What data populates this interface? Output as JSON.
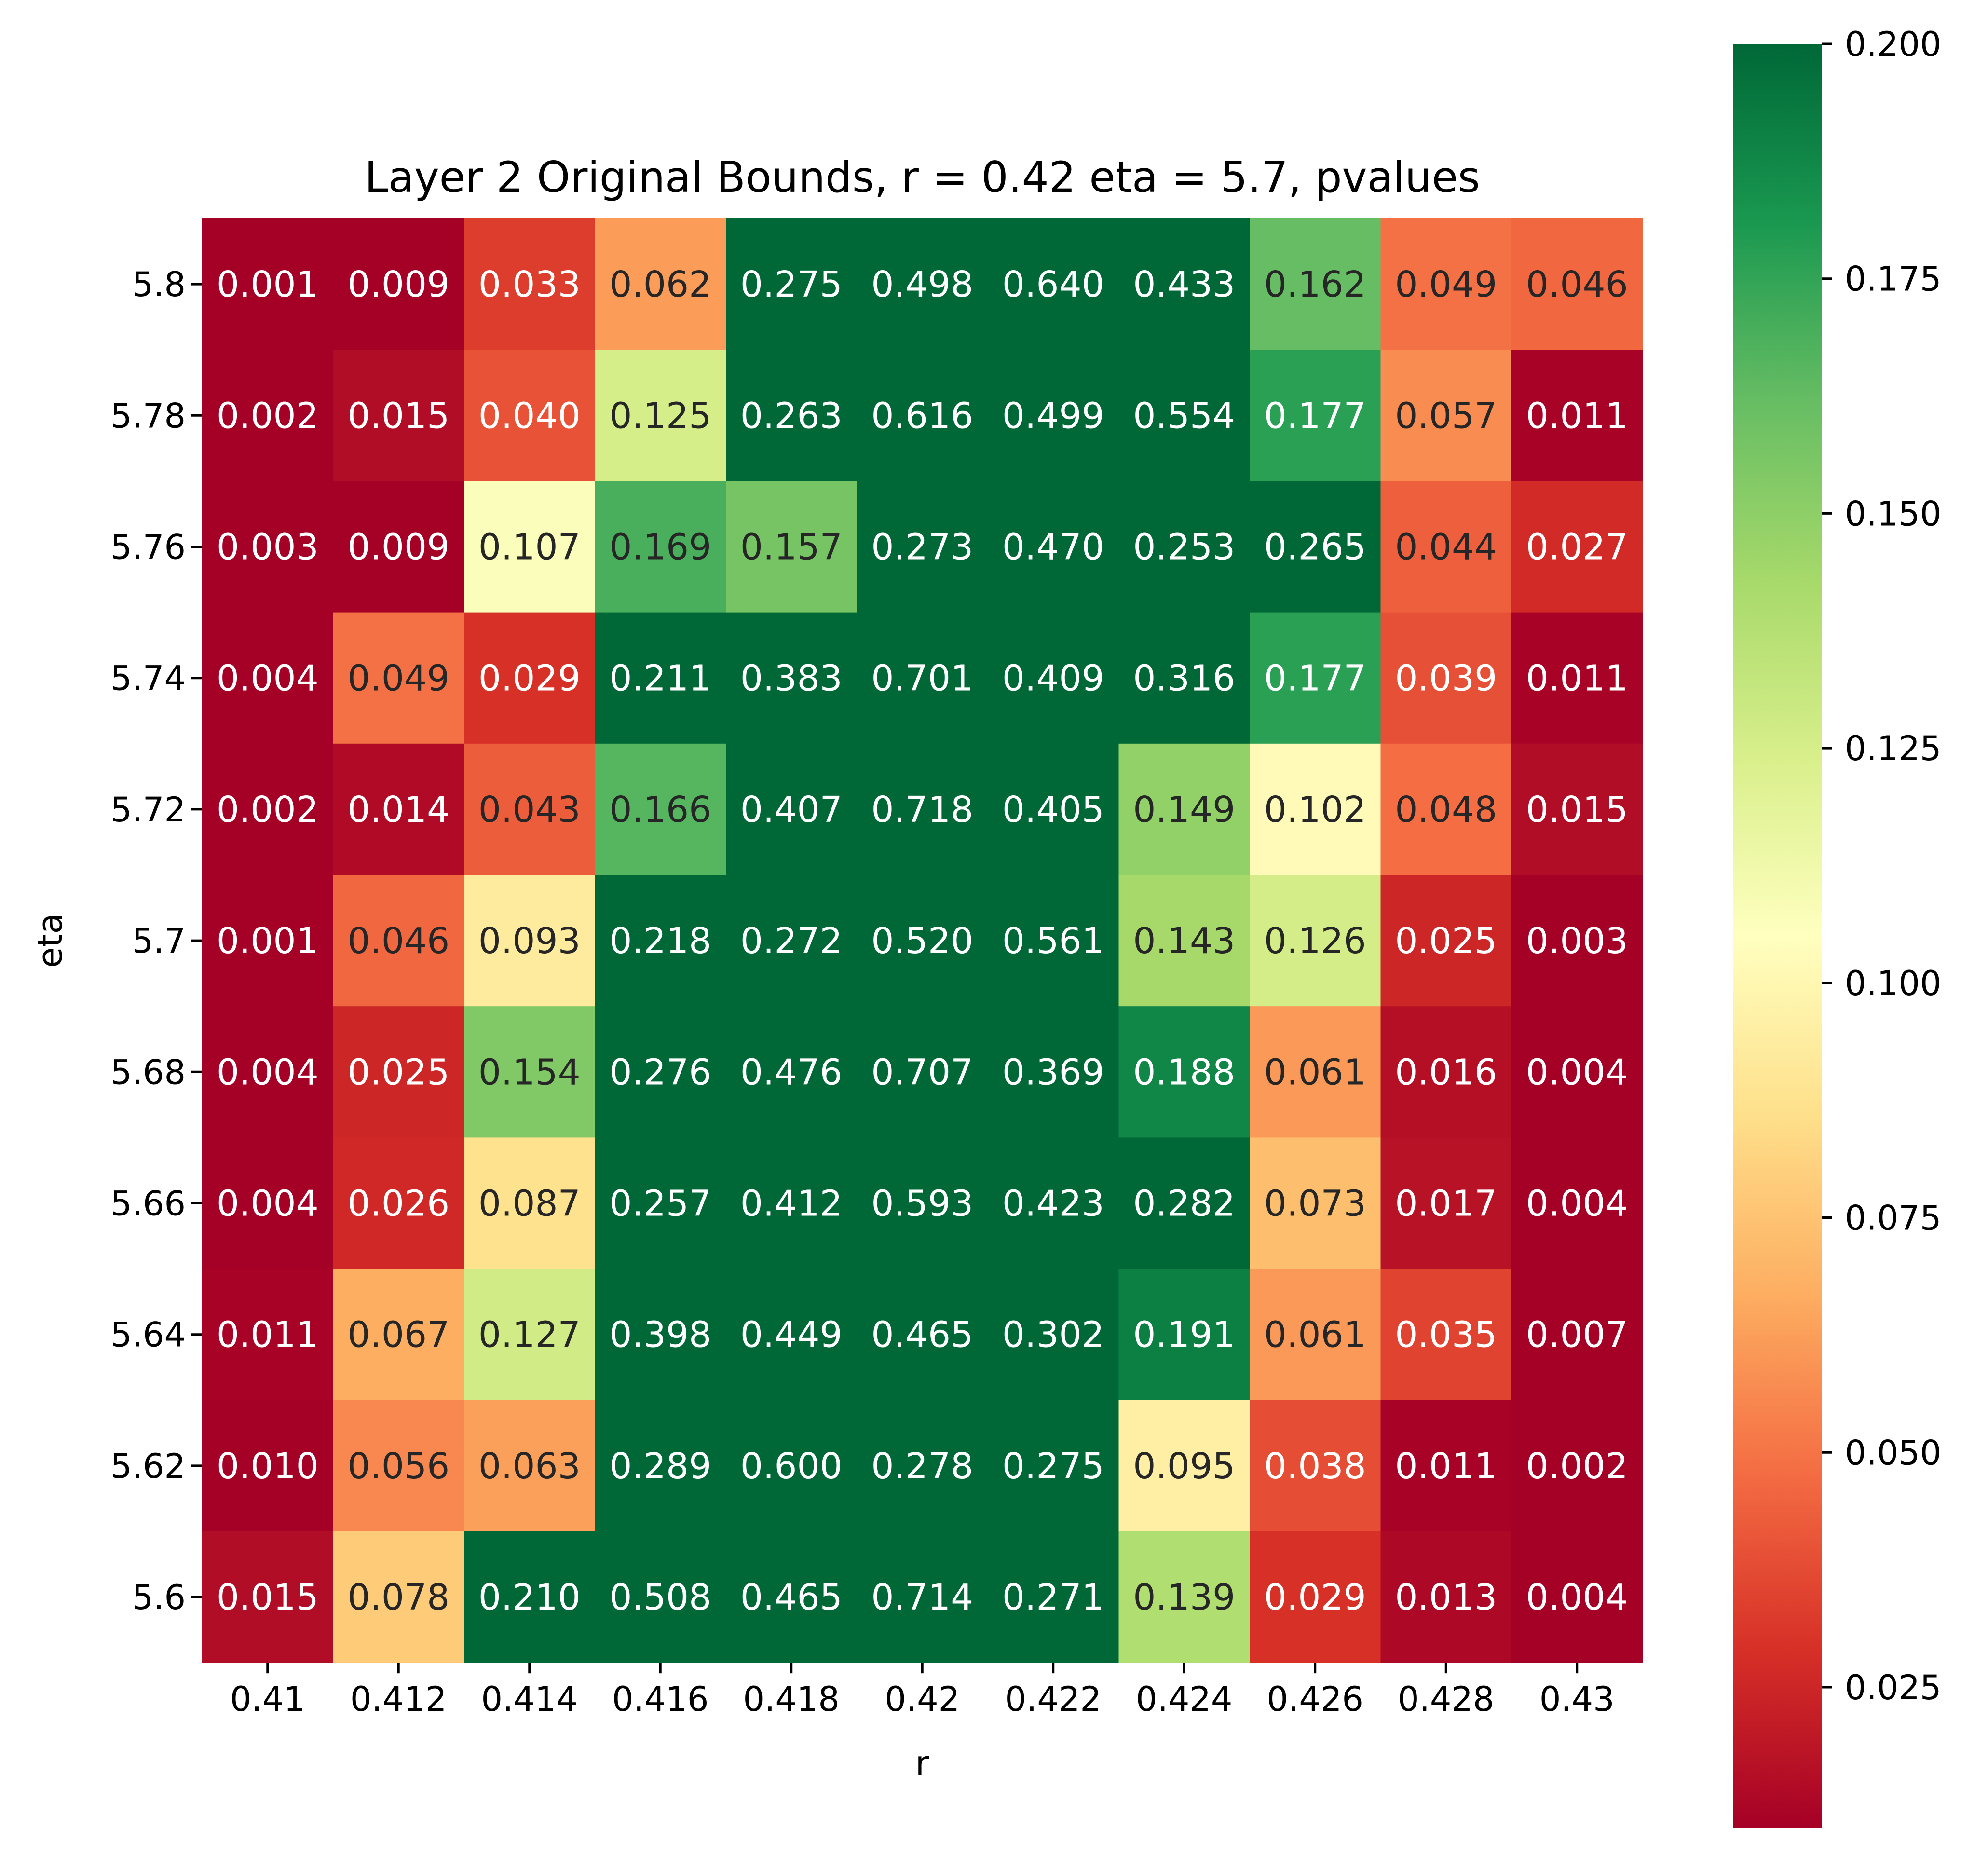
{
  "chart_data": {
    "type": "heatmap",
    "title": "Layer 2 Original Bounds, r = 0.42 eta = 5.7, pvalues",
    "xlabel": "r",
    "ylabel": "eta",
    "x": [
      "0.41",
      "0.412",
      "0.414",
      "0.416",
      "0.418",
      "0.42",
      "0.422",
      "0.424",
      "0.426",
      "0.428",
      "0.43"
    ],
    "y": [
      "5.8",
      "5.78",
      "5.76",
      "5.74",
      "5.72",
      "5.7",
      "5.68",
      "5.66",
      "5.64",
      "5.62",
      "5.6"
    ],
    "values": [
      [
        "0.001",
        "0.009",
        "0.033",
        "0.062",
        "0.275",
        "0.498",
        "0.640",
        "0.433",
        "0.162",
        "0.049",
        "0.046"
      ],
      [
        "0.002",
        "0.015",
        "0.040",
        "0.125",
        "0.263",
        "0.616",
        "0.499",
        "0.554",
        "0.177",
        "0.057",
        "0.011"
      ],
      [
        "0.003",
        "0.009",
        "0.107",
        "0.169",
        "0.157",
        "0.273",
        "0.470",
        "0.253",
        "0.265",
        "0.044",
        "0.027"
      ],
      [
        "0.004",
        "0.049",
        "0.029",
        "0.211",
        "0.383",
        "0.701",
        "0.409",
        "0.316",
        "0.177",
        "0.039",
        "0.011"
      ],
      [
        "0.002",
        "0.014",
        "0.043",
        "0.166",
        "0.407",
        "0.718",
        "0.405",
        "0.149",
        "0.102",
        "0.048",
        "0.015"
      ],
      [
        "0.001",
        "0.046",
        "0.093",
        "0.218",
        "0.272",
        "0.520",
        "0.561",
        "0.143",
        "0.126",
        "0.025",
        "0.003"
      ],
      [
        "0.004",
        "0.025",
        "0.154",
        "0.276",
        "0.476",
        "0.707",
        "0.369",
        "0.188",
        "0.061",
        "0.016",
        "0.004"
      ],
      [
        "0.004",
        "0.026",
        "0.087",
        "0.257",
        "0.412",
        "0.593",
        "0.423",
        "0.282",
        "0.073",
        "0.017",
        "0.004"
      ],
      [
        "0.011",
        "0.067",
        "0.127",
        "0.398",
        "0.449",
        "0.465",
        "0.302",
        "0.191",
        "0.061",
        "0.035",
        "0.007"
      ],
      [
        "0.010",
        "0.056",
        "0.063",
        "0.289",
        "0.600",
        "0.278",
        "0.275",
        "0.095",
        "0.038",
        "0.011",
        "0.002"
      ],
      [
        "0.015",
        "0.078",
        "0.210",
        "0.508",
        "0.465",
        "0.714",
        "0.271",
        "0.139",
        "0.029",
        "0.013",
        "0.004"
      ]
    ],
    "colormap": [
      "#a50026",
      "#d73027",
      "#f46d43",
      "#fdae61",
      "#fee08b",
      "#ffffbf",
      "#d9ef8b",
      "#a6d96a",
      "#66bd63",
      "#1a9850",
      "#006837"
    ],
    "vmin": 0.01,
    "vmax": 0.2,
    "colorbar": {
      "ticks": [
        "0.200",
        "0.175",
        "0.150",
        "0.125",
        "0.100",
        "0.075",
        "0.050",
        "0.025"
      ]
    }
  }
}
